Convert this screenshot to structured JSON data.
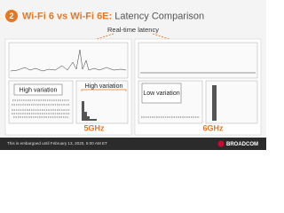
{
  "header": {
    "number": "2",
    "title_bold": "Wi-Fi 6 vs Wi-Fi 6E:",
    "title_rest": "Latency Comparison"
  },
  "callout": "Real-time latency",
  "panels": [
    {
      "band": "5GHz",
      "notes": [
        "High variation",
        "High variation"
      ]
    },
    {
      "band": "6GHz",
      "notes": [
        "Low variation"
      ]
    }
  ],
  "footer": {
    "embargo": "This is embargoed until February 13, 2020, 5:00 AM ET",
    "logo": "BROADCOM"
  }
}
